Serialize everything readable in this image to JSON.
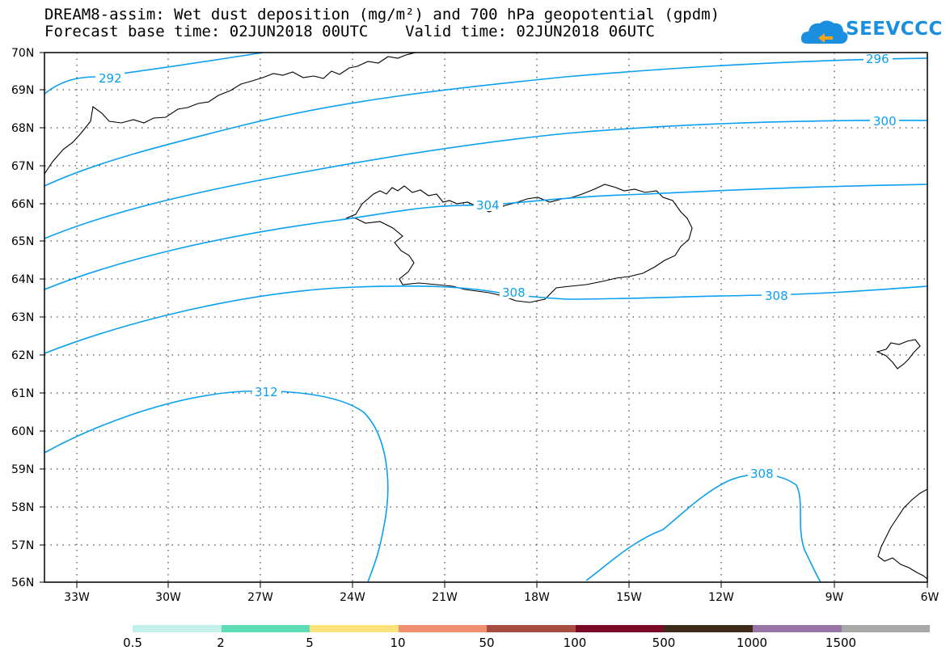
{
  "title_line1": "DREAM8-assim: Wet dust deposition (mg/m²) and 700 hPa geopotential (gpdm)",
  "title_line2": "Forecast base time: 02JUN2018 00UTC    Valid time: 02JUN2018 06UTC",
  "logo": {
    "text": "SEEVCCC",
    "icon": "cloud-icon",
    "color": "#1a8fe0"
  },
  "map": {
    "lat_labels": [
      "70N",
      "69N",
      "68N",
      "67N",
      "66N",
      "65N",
      "64N",
      "63N",
      "62N",
      "61N",
      "60N",
      "59N",
      "58N",
      "57N",
      "56N"
    ],
    "lon_labels": [
      "33W",
      "30W",
      "27W",
      "24W",
      "21W",
      "18W",
      "15W",
      "12W",
      "9W",
      "6W"
    ],
    "lat_range": [
      56,
      70
    ],
    "lon_range": [
      -34.1,
      -6
    ],
    "grid": "dotted",
    "contour_color": "#0aa0ef",
    "contour_labels": [
      "292",
      "296",
      "300",
      "304",
      "308",
      "308",
      "308",
      "312"
    ]
  },
  "legend": {
    "labels": [
      "0.5",
      "2",
      "5",
      "10",
      "50",
      "100",
      "500",
      "1000",
      "1500"
    ],
    "colors": [
      "#c3f0ea",
      "#5ddcb5",
      "#fbe27a",
      "#f09070",
      "#a84c42",
      "#7a0a26",
      "#3d2a18",
      "#9a74a5",
      "#a8a8a8"
    ]
  }
}
